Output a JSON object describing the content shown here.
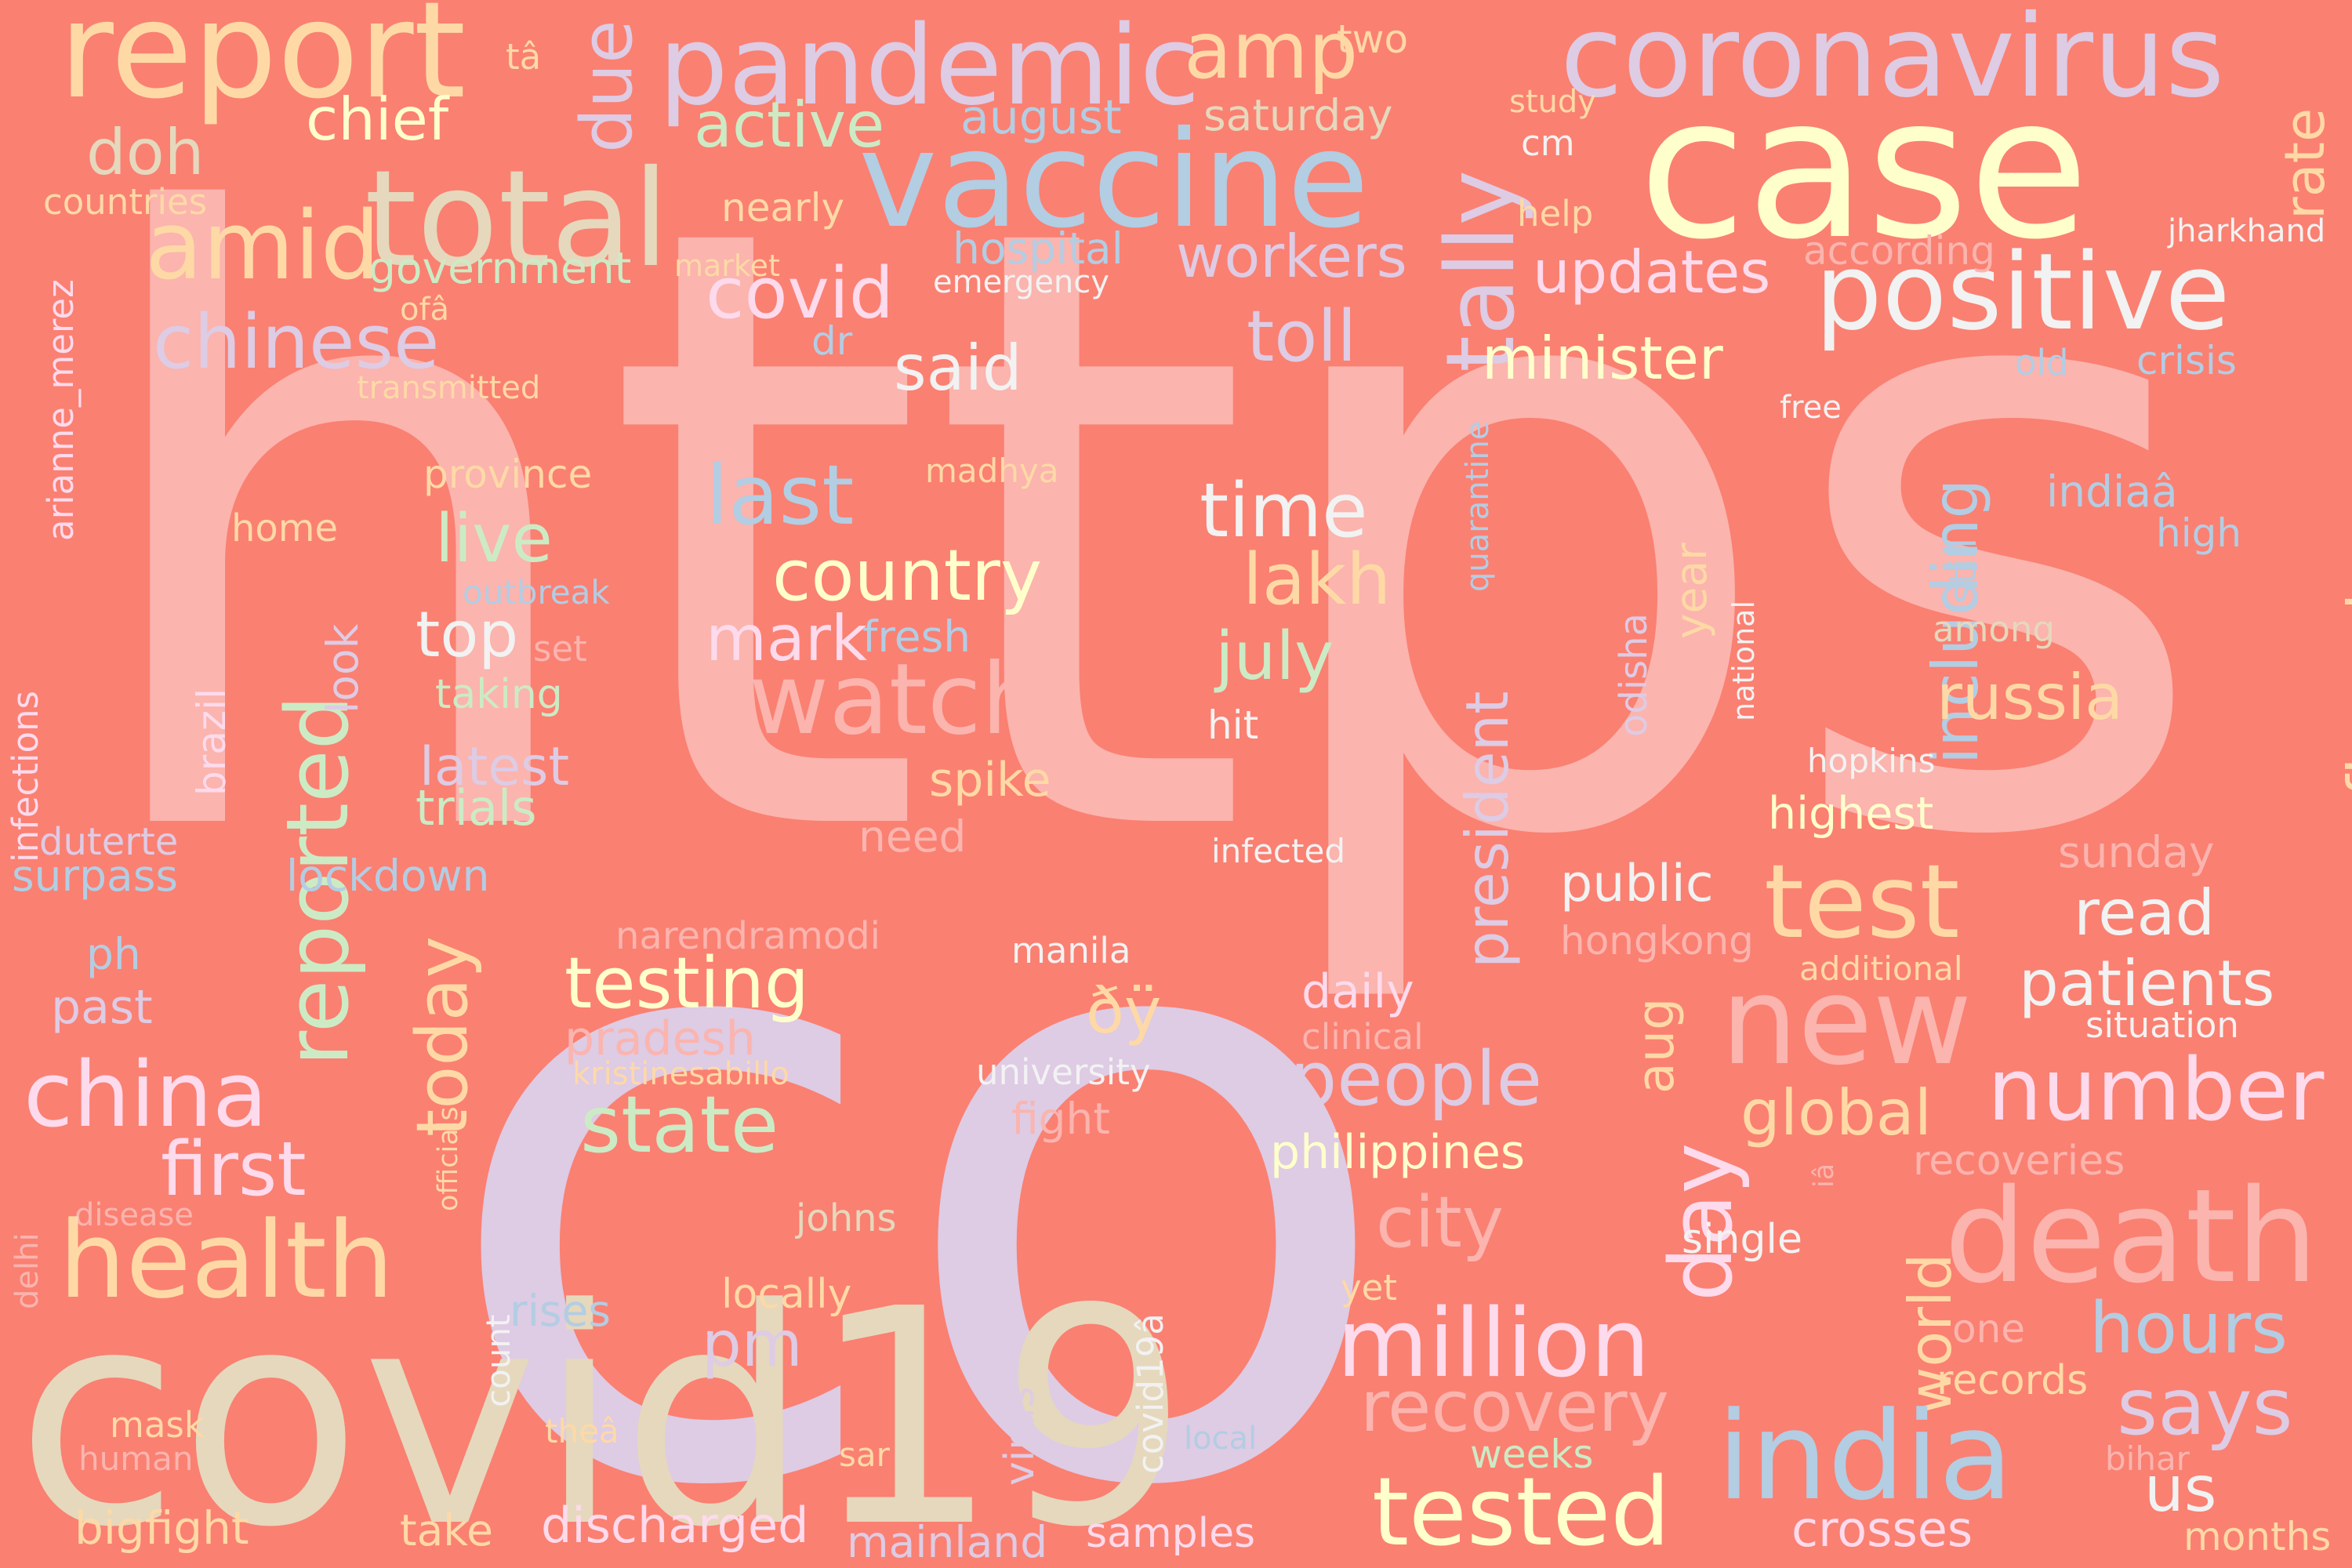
{
  "colors": {
    "background": "#fa8072",
    "pink": "#fbb4ae",
    "lavender": "#decbe4",
    "tan": "#e5d8bd",
    "yellow": "#ffffcc",
    "peach": "#fed9a6",
    "blue": "#b3cde3",
    "green": "#ccebc5",
    "rose": "#fddaec",
    "grey": "#f2f2f2"
  },
  "words": [
    {
      "text": "https",
      "color": "pink"
    },
    {
      "text": "co",
      "color": "lavender"
    },
    {
      "text": "covid19",
      "color": "tan"
    },
    {
      "text": "case",
      "color": "yellow"
    },
    {
      "text": "report",
      "color": "peach"
    },
    {
      "text": "pandemic",
      "color": "lavender"
    },
    {
      "text": "coronavirus",
      "color": "lavender"
    },
    {
      "text": "vaccine",
      "color": "blue"
    },
    {
      "text": "total",
      "color": "tan"
    },
    {
      "text": "positive",
      "color": "grey"
    },
    {
      "text": "tally",
      "color": "lavender"
    },
    {
      "text": "amid",
      "color": "peach"
    },
    {
      "text": "due",
      "color": "lavender"
    },
    {
      "text": "amp",
      "color": "peach"
    },
    {
      "text": "doh",
      "color": "tan"
    },
    {
      "text": "chief",
      "color": "yellow"
    },
    {
      "text": "active",
      "color": "green"
    },
    {
      "text": "august",
      "color": "blue"
    },
    {
      "text": "saturday",
      "color": "tan"
    },
    {
      "text": "two",
      "color": "peach"
    },
    {
      "text": "tâ",
      "color": "peach"
    },
    {
      "text": "rate",
      "color": "peach"
    },
    {
      "text": "study",
      "color": "peach"
    },
    {
      "text": "cm",
      "color": "grey"
    },
    {
      "text": "help",
      "color": "peach"
    },
    {
      "text": "countries",
      "color": "peach"
    },
    {
      "text": "nearly",
      "color": "peach"
    },
    {
      "text": "hospital",
      "color": "blue"
    },
    {
      "text": "workers",
      "color": "lavender"
    },
    {
      "text": "according",
      "color": "pink"
    },
    {
      "text": "jharkhand",
      "color": "grey"
    },
    {
      "text": "government",
      "color": "green"
    },
    {
      "text": "market",
      "color": "peach"
    },
    {
      "text": "emergency",
      "color": "grey"
    },
    {
      "text": "covid",
      "color": "rose"
    },
    {
      "text": "updates",
      "color": "rose"
    },
    {
      "text": "chinese",
      "color": "lavender"
    },
    {
      "text": "toll",
      "color": "lavender"
    },
    {
      "text": "ofâ",
      "color": "peach"
    },
    {
      "text": "dr",
      "color": "blue"
    },
    {
      "text": "said",
      "color": "grey"
    },
    {
      "text": "minister",
      "color": "yellow"
    },
    {
      "text": "old",
      "color": "blue"
    },
    {
      "text": "crisis",
      "color": "blue"
    },
    {
      "text": "arianne_merez",
      "color": "rose"
    },
    {
      "text": "transmitted",
      "color": "peach"
    },
    {
      "text": "free",
      "color": "grey"
    },
    {
      "text": "quarantine",
      "color": "blue"
    },
    {
      "text": "including",
      "color": "blue"
    },
    {
      "text": "province",
      "color": "peach"
    },
    {
      "text": "madhya",
      "color": "peach"
    },
    {
      "text": "last",
      "color": "blue"
    },
    {
      "text": "still",
      "color": "blue"
    },
    {
      "text": "indiaâ",
      "color": "blue"
    },
    {
      "text": "confirmed",
      "color": "peach"
    },
    {
      "text": "time",
      "color": "grey"
    },
    {
      "text": "home",
      "color": "peach"
    },
    {
      "text": "live",
      "color": "green"
    },
    {
      "text": "high",
      "color": "blue"
    },
    {
      "text": "country",
      "color": "yellow"
    },
    {
      "text": "lakh",
      "color": "peach"
    },
    {
      "text": "year",
      "color": "peach"
    },
    {
      "text": "outbreak",
      "color": "blue"
    },
    {
      "text": "reported",
      "color": "green"
    },
    {
      "text": "top",
      "color": "grey"
    },
    {
      "text": "mark",
      "color": "rose"
    },
    {
      "text": "fresh",
      "color": "blue"
    },
    {
      "text": "set",
      "color": "pink"
    },
    {
      "text": "national",
      "color": "grey"
    },
    {
      "text": "odisha",
      "color": "lavender"
    },
    {
      "text": "among",
      "color": "tan"
    },
    {
      "text": "infections",
      "color": "rose"
    },
    {
      "text": "look",
      "color": "lavender"
    },
    {
      "text": "watch",
      "color": "pink"
    },
    {
      "text": "july",
      "color": "green"
    },
    {
      "text": "russia",
      "color": "peach"
    },
    {
      "text": "brazil",
      "color": "rose"
    },
    {
      "text": "taking",
      "color": "green"
    },
    {
      "text": "hit",
      "color": "grey"
    },
    {
      "text": "president",
      "color": "lavender"
    },
    {
      "text": "latest",
      "color": "lavender"
    },
    {
      "text": "spike",
      "color": "peach"
    },
    {
      "text": "hopkins",
      "color": "grey"
    },
    {
      "text": "trials",
      "color": "green"
    },
    {
      "text": "highest",
      "color": "yellow"
    },
    {
      "text": "duterte",
      "color": "lavender"
    },
    {
      "text": "need",
      "color": "pink"
    },
    {
      "text": "infected",
      "color": "grey"
    },
    {
      "text": "sunday",
      "color": "pink"
    },
    {
      "text": "surpass",
      "color": "blue"
    },
    {
      "text": "lockdown",
      "color": "blue"
    },
    {
      "text": "test",
      "color": "peach"
    },
    {
      "text": "public",
      "color": "grey"
    },
    {
      "text": "read",
      "color": "grey"
    },
    {
      "text": "narendramodi",
      "color": "pink"
    },
    {
      "text": "hongkong",
      "color": "pink"
    },
    {
      "text": "ph",
      "color": "blue"
    },
    {
      "text": "today",
      "color": "peach"
    },
    {
      "text": "manila",
      "color": "grey"
    },
    {
      "text": "additional",
      "color": "peach"
    },
    {
      "text": "testing",
      "color": "yellow"
    },
    {
      "text": "new",
      "color": "pink"
    },
    {
      "text": "patients",
      "color": "grey"
    },
    {
      "text": "past",
      "color": "lavender"
    },
    {
      "text": "ðÿ",
      "color": "peach"
    },
    {
      "text": "daily",
      "color": "rose"
    },
    {
      "text": "pradesh",
      "color": "pink"
    },
    {
      "text": "clinical",
      "color": "pink"
    },
    {
      "text": "situation",
      "color": "grey"
    },
    {
      "text": "officials",
      "color": "peach"
    },
    {
      "text": "china",
      "color": "rose"
    },
    {
      "text": "aug",
      "color": "peach"
    },
    {
      "text": "kristinesabillo",
      "color": "peach"
    },
    {
      "text": "university",
      "color": "grey"
    },
    {
      "text": "people",
      "color": "lavender"
    },
    {
      "text": "number",
      "color": "rose"
    },
    {
      "text": "state",
      "color": "green"
    },
    {
      "text": "global",
      "color": "peach"
    },
    {
      "text": "fight",
      "color": "pink"
    },
    {
      "text": "philippines",
      "color": "yellow"
    },
    {
      "text": "first",
      "color": "rose"
    },
    {
      "text": "day",
      "color": "rose"
    },
    {
      "text": "recoveries",
      "color": "pink"
    },
    {
      "text": "iâ",
      "color": "pink"
    },
    {
      "text": "delhi",
      "color": "pink"
    },
    {
      "text": "disease",
      "color": "pink"
    },
    {
      "text": "health",
      "color": "peach"
    },
    {
      "text": "johns",
      "color": "tan"
    },
    {
      "text": "city",
      "color": "pink"
    },
    {
      "text": "world",
      "color": "peach"
    },
    {
      "text": "death",
      "color": "pink"
    },
    {
      "text": "single",
      "color": "grey"
    },
    {
      "text": "covid19â",
      "color": "grey"
    },
    {
      "text": "yet",
      "color": "peach"
    },
    {
      "text": "locally",
      "color": "peach"
    },
    {
      "text": "rises",
      "color": "blue"
    },
    {
      "text": "pm",
      "color": "lavender"
    },
    {
      "text": "million",
      "color": "rose"
    },
    {
      "text": "hours",
      "color": "blue"
    },
    {
      "text": "one",
      "color": "pink"
    },
    {
      "text": "count",
      "color": "grey"
    },
    {
      "text": "recovery",
      "color": "pink"
    },
    {
      "text": "records",
      "color": "peach"
    },
    {
      "text": "says",
      "color": "lavender"
    },
    {
      "text": "mask",
      "color": "peach"
    },
    {
      "text": "theâ",
      "color": "peach"
    },
    {
      "text": "virus",
      "color": "lavender"
    },
    {
      "text": "local",
      "color": "blue"
    },
    {
      "text": "india",
      "color": "blue"
    },
    {
      "text": "human",
      "color": "pink"
    },
    {
      "text": "sar",
      "color": "peach"
    },
    {
      "text": "weeks",
      "color": "green"
    },
    {
      "text": "bihar",
      "color": "pink"
    },
    {
      "text": "us",
      "color": "grey"
    },
    {
      "text": "bigfight",
      "color": "peach"
    },
    {
      "text": "take",
      "color": "peach"
    },
    {
      "text": "discharged",
      "color": "rose"
    },
    {
      "text": "mainland",
      "color": "lavender"
    },
    {
      "text": "samples",
      "color": "rose"
    },
    {
      "text": "tested",
      "color": "yellow"
    },
    {
      "text": "crosses",
      "color": "rose"
    },
    {
      "text": "months",
      "color": "peach"
    }
  ]
}
